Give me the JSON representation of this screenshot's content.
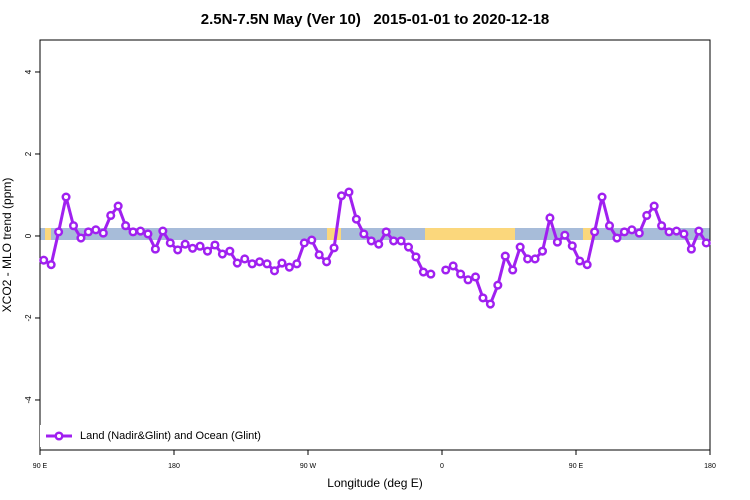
{
  "chart_data": {
    "type": "line",
    "title": "2.5N-7.5N May (Ver 10)   2015-01-01 to 2020-12-18",
    "xlabel": "Longitude (deg E)",
    "ylabel": "XCO2 - MLO trend (ppm)",
    "x": [
      92.5,
      97.5,
      102.5,
      107.5,
      112.5,
      117.5,
      122.5,
      127.5,
      132.5,
      137.5,
      142.5,
      147.5,
      152.5,
      157.5,
      162.5,
      167.5,
      172.5,
      177.5,
      182.5,
      187.5,
      192.5,
      197.5,
      202.5,
      207.5,
      212.5,
      217.5,
      222.5,
      227.5,
      232.5,
      237.5,
      242.5,
      247.5,
      252.5,
      257.5,
      262.5,
      267.5,
      272.5,
      277.5,
      282.5,
      287.5,
      292.5,
      297.5,
      302.5,
      307.5,
      312.5,
      317.5,
      322.5,
      327.5,
      332.5,
      337.5,
      342.5,
      347.5,
      352.5,
      357.5,
      362.5,
      367.5,
      372.5,
      377.5,
      382.5,
      387.5,
      392.5,
      397.5,
      402.5,
      407.5,
      412.5,
      417.5,
      422.5,
      427.5,
      432.5,
      437.5,
      442.5,
      447.5,
      452.5,
      457.5,
      462.5,
      467.5,
      472.5,
      477.5,
      482.5,
      487.5,
      492.5,
      497.5,
      502.5,
      507.5,
      512.5,
      517.5,
      522.5,
      527.5,
      532.5,
      537.5
    ],
    "series": [
      {
        "name": "Land (Nadir&Glint) and Ocean (Glint)",
        "color": "#a020f0",
        "values": [
          -0.59,
          -0.7,
          0.1,
          0.95,
          0.25,
          -0.05,
          0.1,
          0.15,
          0.07,
          0.5,
          0.73,
          0.25,
          0.1,
          0.12,
          0.05,
          -0.32,
          0.12,
          -0.17,
          -0.34,
          -0.2,
          -0.3,
          -0.25,
          -0.37,
          -0.22,
          -0.44,
          -0.37,
          -0.66,
          -0.56,
          -0.68,
          -0.63,
          -0.68,
          -0.85,
          -0.66,
          -0.76,
          -0.68,
          -0.17,
          -0.1,
          -0.46,
          -0.63,
          -0.29,
          0.98,
          1.07,
          0.41,
          0.05,
          -0.12,
          -0.2,
          0.1,
          -0.12,
          -0.12,
          -0.27,
          -0.51,
          -0.88,
          -0.93,
          null,
          -0.83,
          -0.73,
          -0.93,
          -1.07,
          -1.0,
          -1.51,
          -1.66,
          -1.2,
          -0.49,
          -0.83,
          -0.27,
          -0.56,
          -0.56,
          -0.37,
          0.44,
          -0.15,
          0.02,
          -0.24,
          -0.61,
          -0.7,
          0.1,
          0.95,
          0.25,
          -0.05,
          0.1,
          0.15,
          0.07,
          0.5,
          0.73,
          0.25,
          0.1,
          0.12,
          0.05,
          -0.32,
          0.12,
          -0.17
        ]
      }
    ],
    "xlim": [
      90,
      540
    ],
    "xticks": [
      {
        "value": 90,
        "label": "90 E"
      },
      180,
      {
        "value": 270,
        "label": "90 W"
      },
      {
        "value": 360,
        "label": "0"
      },
      {
        "value": 450,
        "label": "90 E"
      },
      {
        "value": 540,
        "label": "180"
      }
    ],
    "ylim": [
      -5.22,
      4.78
    ],
    "yticks": [
      -4,
      -2,
      0,
      2,
      4
    ],
    "legend": "lower left"
  }
}
